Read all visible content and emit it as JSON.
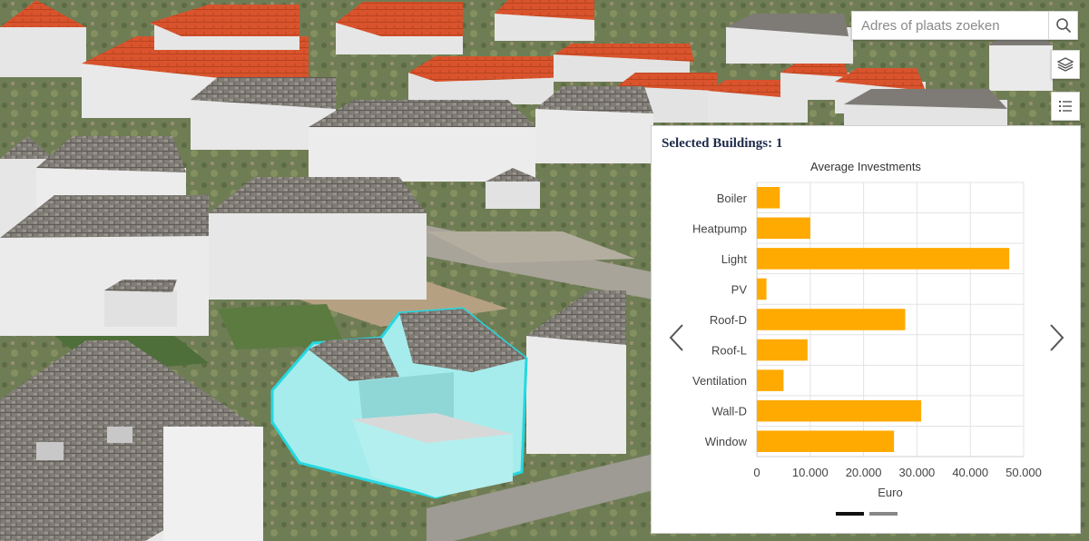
{
  "search": {
    "placeholder": "Adres of plaats zoeken"
  },
  "toolbar": {
    "search_icon": "search-icon",
    "layers_icon": "layers-icon",
    "legend_icon": "legend-list-icon"
  },
  "panel": {
    "selected_label": "Selected Buildings: 1",
    "prev_icon": "chevron-left-icon",
    "next_icon": "chevron-right-icon",
    "pages": 2,
    "active_page": 1
  },
  "chart_data": {
    "type": "bar",
    "orientation": "horizontal",
    "title": "Average Investments",
    "xlabel": "Euro",
    "ylabel": "",
    "categories": [
      "Boiler",
      "Heatpump",
      "Light",
      "PV",
      "Roof-D",
      "Roof-L",
      "Ventilation",
      "Wall-D",
      "Window"
    ],
    "values": [
      4300,
      10000,
      47300,
      1800,
      27800,
      9500,
      5000,
      30800,
      25700
    ],
    "xlim": [
      0,
      50000
    ],
    "xticks": [
      0,
      10000,
      20000,
      30000,
      40000,
      50000
    ],
    "xtick_labels": [
      "0",
      "10.000",
      "20.000",
      "30.000",
      "40.000",
      "50.000"
    ],
    "bar_color": "#ffaa00",
    "grid": true
  },
  "colors": {
    "roof_tile": "#d9532c",
    "wall": "#ececec",
    "highlight": "#a6ecec",
    "highlight_outline": "#25d8e0"
  }
}
